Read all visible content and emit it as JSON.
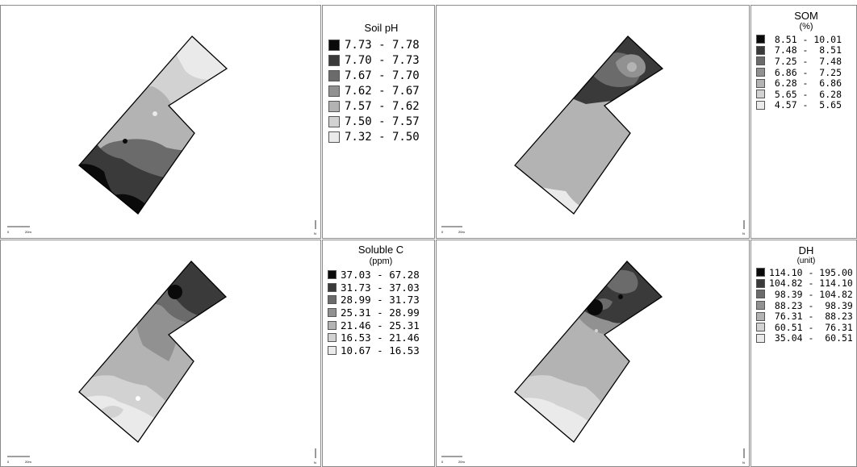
{
  "maps": [
    {
      "id": "soil-ph",
      "scale_start": "0",
      "scale_end": "20m",
      "north_symbol": "N",
      "legend": {
        "title": "Soil pH",
        "subtitle": "",
        "items": [
          {
            "range": "7.73 - 7.78",
            "color": "#0a0a0a"
          },
          {
            "range": "7.70 - 7.73",
            "color": "#3a3a3a"
          },
          {
            "range": "7.67 - 7.70",
            "color": "#6b6b6b"
          },
          {
            "range": "7.62 - 7.67",
            "color": "#919191"
          },
          {
            "range": "7.57 - 7.62",
            "color": "#b3b3b3"
          },
          {
            "range": "7.50 - 7.57",
            "color": "#d2d2d2"
          },
          {
            "range": "7.32 - 7.50",
            "color": "#eaeaea"
          }
        ]
      }
    },
    {
      "id": "som",
      "scale_start": "0",
      "scale_end": "20m",
      "north_symbol": "N",
      "legend": {
        "title": "SOM",
        "subtitle": "(%)",
        "items": [
          {
            "range": " 8.51 - 10.01",
            "color": "#0a0a0a"
          },
          {
            "range": " 7.48 -  8.51",
            "color": "#3a3a3a"
          },
          {
            "range": " 7.25 -  7.48",
            "color": "#6b6b6b"
          },
          {
            "range": " 6.86 -  7.25",
            "color": "#919191"
          },
          {
            "range": " 6.28 -  6.86",
            "color": "#b3b3b3"
          },
          {
            "range": " 5.65 -  6.28",
            "color": "#d2d2d2"
          },
          {
            "range": " 4.57 -  5.65",
            "color": "#eaeaea"
          }
        ]
      }
    },
    {
      "id": "soluble-c",
      "scale_start": "0",
      "scale_end": "20m",
      "north_symbol": "N",
      "legend": {
        "title": "Soluble C",
        "subtitle": "(ppm)",
        "items": [
          {
            "range": "37.03 - 67.28",
            "color": "#0a0a0a"
          },
          {
            "range": "31.73 - 37.03",
            "color": "#3a3a3a"
          },
          {
            "range": "28.99 - 31.73",
            "color": "#6b6b6b"
          },
          {
            "range": "25.31 - 28.99",
            "color": "#919191"
          },
          {
            "range": "21.46 - 25.31",
            "color": "#b3b3b3"
          },
          {
            "range": "16.53 - 21.46",
            "color": "#d2d2d2"
          },
          {
            "range": "10.67 - 16.53",
            "color": "#eaeaea"
          }
        ]
      }
    },
    {
      "id": "dh",
      "scale_start": "0",
      "scale_end": "20m",
      "north_symbol": "N",
      "legend": {
        "title": "DH",
        "subtitle": "(unit)",
        "items": [
          {
            "range": "114.10 - 195.00",
            "color": "#0a0a0a"
          },
          {
            "range": "104.82 - 114.10",
            "color": "#3a3a3a"
          },
          {
            "range": " 98.39 - 104.82",
            "color": "#6b6b6b"
          },
          {
            "range": " 88.23 -  98.39",
            "color": "#919191"
          },
          {
            "range": " 76.31 -  88.23",
            "color": "#b3b3b3"
          },
          {
            "range": " 60.51 -  76.31",
            "color": "#d2d2d2"
          },
          {
            "range": " 35.04 -  60.51",
            "color": "#eaeaea"
          }
        ]
      }
    }
  ]
}
